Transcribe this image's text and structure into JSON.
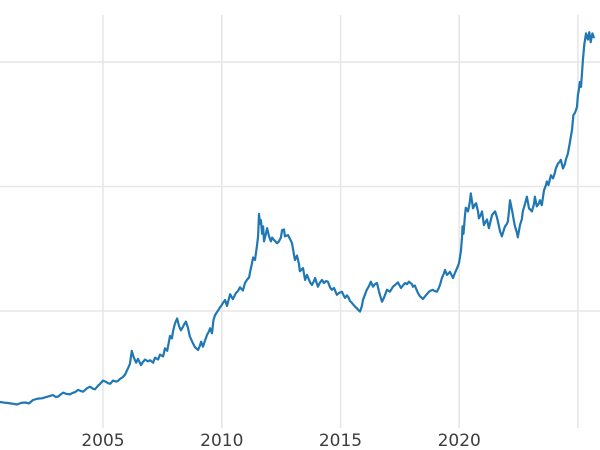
{
  "meta": {
    "description": "Cropped line chart of a long-term price series; left y-axis labels are cut off outside the visible image.",
    "background_color": "#ffffff"
  },
  "style": {
    "line_color": "#1f77b4",
    "line_width": 2.2,
    "grid_color": "#e7e7e7",
    "grid_width": 1.6,
    "tick_label_color": "#3d3d3d",
    "tick_font_size": 17
  },
  "chart_data": {
    "type": "line",
    "title": "",
    "xlabel": "",
    "ylabel": "",
    "grid": true,
    "legend": "none",
    "x_tick_labels": [
      "2005",
      "2010",
      "2015",
      "2020"
    ],
    "x_tick_years": [
      2005,
      2010,
      2015,
      2020
    ],
    "x_gridline_years": [
      2005,
      2010,
      2015,
      2020,
      2025
    ],
    "y_gridline_values": [
      1000,
      2000,
      3000
    ],
    "y_tick_labels_visible": false,
    "note": "Y-axis tick labels are cropped out of view; values estimated assuming the three unlabeled horizontal gridlines are 1000, 2000, 3000.",
    "xlim": [
      2000.66,
      2025.93
    ],
    "ylim": [
      60,
      3378
    ],
    "series": [
      {
        "name": "price",
        "color": "#1f77b4",
        "points": [
          [
            2000.66,
            269
          ],
          [
            2000.82,
            264
          ],
          [
            2000.99,
            261
          ],
          [
            2001.16,
            256
          ],
          [
            2001.38,
            249
          ],
          [
            2001.55,
            262
          ],
          [
            2001.72,
            265
          ],
          [
            2001.88,
            258
          ],
          [
            2002.05,
            285
          ],
          [
            2002.26,
            296
          ],
          [
            2002.43,
            299
          ],
          [
            2002.6,
            308
          ],
          [
            2002.77,
            318
          ],
          [
            2002.89,
            325
          ],
          [
            2003.0,
            310
          ],
          [
            2003.11,
            312
          ],
          [
            2003.22,
            330
          ],
          [
            2003.32,
            344
          ],
          [
            2003.44,
            335
          ],
          [
            2003.61,
            330
          ],
          [
            2003.7,
            340
          ],
          [
            2003.82,
            348
          ],
          [
            2003.95,
            366
          ],
          [
            2004.05,
            358
          ],
          [
            2004.16,
            352
          ],
          [
            2004.33,
            380
          ],
          [
            2004.45,
            392
          ],
          [
            2004.58,
            375
          ],
          [
            2004.66,
            371
          ],
          [
            2004.79,
            400
          ],
          [
            2004.87,
            414
          ],
          [
            2005.0,
            441
          ],
          [
            2005.13,
            430
          ],
          [
            2005.21,
            420
          ],
          [
            2005.3,
            415
          ],
          [
            2005.42,
            441
          ],
          [
            2005.55,
            433
          ],
          [
            2005.63,
            438
          ],
          [
            2005.72,
            455
          ],
          [
            2005.84,
            470
          ],
          [
            2005.93,
            490
          ],
          [
            2006.05,
            540
          ],
          [
            2006.13,
            575
          ],
          [
            2006.21,
            680
          ],
          [
            2006.27,
            640
          ],
          [
            2006.31,
            620
          ],
          [
            2006.39,
            585
          ],
          [
            2006.47,
            615
          ],
          [
            2006.6,
            565
          ],
          [
            2006.68,
            590
          ],
          [
            2006.77,
            610
          ],
          [
            2006.89,
            595
          ],
          [
            2006.98,
            605
          ],
          [
            2007.11,
            585
          ],
          [
            2007.19,
            625
          ],
          [
            2007.32,
            610
          ],
          [
            2007.4,
            650
          ],
          [
            2007.53,
            635
          ],
          [
            2007.61,
            700
          ],
          [
            2007.7,
            680
          ],
          [
            2007.82,
            800
          ],
          [
            2007.9,
            780
          ],
          [
            2007.95,
            840
          ],
          [
            2008.03,
            900
          ],
          [
            2008.12,
            940
          ],
          [
            2008.2,
            880
          ],
          [
            2008.28,
            845
          ],
          [
            2008.36,
            870
          ],
          [
            2008.41,
            890
          ],
          [
            2008.49,
            915
          ],
          [
            2008.57,
            870
          ],
          [
            2008.66,
            794
          ],
          [
            2008.79,
            740
          ],
          [
            2008.87,
            710
          ],
          [
            2009.0,
            687
          ],
          [
            2009.08,
            720
          ],
          [
            2009.13,
            753
          ],
          [
            2009.21,
            713
          ],
          [
            2009.29,
            760
          ],
          [
            2009.38,
            807
          ],
          [
            2009.46,
            835
          ],
          [
            2009.51,
            861
          ],
          [
            2009.59,
            821
          ],
          [
            2009.65,
            928
          ],
          [
            2009.72,
            968
          ],
          [
            2009.86,
            1008
          ],
          [
            2009.93,
            1030
          ],
          [
            2010.0,
            1048
          ],
          [
            2010.07,
            1070
          ],
          [
            2010.14,
            1088
          ],
          [
            2010.22,
            1040
          ],
          [
            2010.35,
            1135
          ],
          [
            2010.47,
            1095
          ],
          [
            2010.6,
            1145
          ],
          [
            2010.68,
            1160
          ],
          [
            2010.77,
            1190
          ],
          [
            2010.89,
            1165
          ],
          [
            2010.98,
            1225
          ],
          [
            2011.06,
            1250
          ],
          [
            2011.15,
            1270
          ],
          [
            2011.19,
            1310
          ],
          [
            2011.27,
            1380
          ],
          [
            2011.32,
            1430
          ],
          [
            2011.4,
            1410
          ],
          [
            2011.48,
            1520
          ],
          [
            2011.53,
            1600
          ],
          [
            2011.57,
            1780
          ],
          [
            2011.61,
            1700
          ],
          [
            2011.65,
            1730
          ],
          [
            2011.7,
            1620
          ],
          [
            2011.74,
            1680
          ],
          [
            2011.78,
            1560
          ],
          [
            2011.86,
            1620
          ],
          [
            2011.91,
            1665
          ],
          [
            2011.99,
            1600
          ],
          [
            2012.07,
            1560
          ],
          [
            2012.12,
            1590
          ],
          [
            2012.2,
            1570
          ],
          [
            2012.33,
            1545
          ],
          [
            2012.41,
            1560
          ],
          [
            2012.49,
            1590
          ],
          [
            2012.54,
            1650
          ],
          [
            2012.62,
            1655
          ],
          [
            2012.66,
            1600
          ],
          [
            2012.79,
            1610
          ],
          [
            2012.87,
            1580
          ],
          [
            2012.96,
            1545
          ],
          [
            2013.08,
            1410
          ],
          [
            2013.17,
            1445
          ],
          [
            2013.25,
            1380
          ],
          [
            2013.29,
            1320
          ],
          [
            2013.42,
            1345
          ],
          [
            2013.51,
            1250
          ],
          [
            2013.59,
            1290
          ],
          [
            2013.72,
            1230
          ],
          [
            2013.8,
            1210
          ],
          [
            2013.88,
            1240
          ],
          [
            2013.93,
            1265
          ],
          [
            2014.05,
            1195
          ],
          [
            2014.14,
            1230
          ],
          [
            2014.22,
            1250
          ],
          [
            2014.3,
            1225
          ],
          [
            2014.39,
            1240
          ],
          [
            2014.47,
            1235
          ],
          [
            2014.56,
            1190
          ],
          [
            2014.64,
            1170
          ],
          [
            2014.73,
            1185
          ],
          [
            2014.81,
            1145
          ],
          [
            2014.85,
            1130
          ],
          [
            2014.94,
            1145
          ],
          [
            2015.06,
            1155
          ],
          [
            2015.15,
            1120
          ],
          [
            2015.19,
            1105
          ],
          [
            2015.27,
            1125
          ],
          [
            2015.32,
            1115
          ],
          [
            2015.4,
            1080
          ],
          [
            2015.48,
            1065
          ],
          [
            2015.57,
            1045
          ],
          [
            2015.61,
            1035
          ],
          [
            2015.7,
            1020
          ],
          [
            2015.74,
            1010
          ],
          [
            2015.82,
            995
          ],
          [
            2015.9,
            1040
          ],
          [
            2015.95,
            1090
          ],
          [
            2016.03,
            1130
          ],
          [
            2016.11,
            1170
          ],
          [
            2016.2,
            1200
          ],
          [
            2016.28,
            1235
          ],
          [
            2016.37,
            1195
          ],
          [
            2016.45,
            1215
          ],
          [
            2016.54,
            1225
          ],
          [
            2016.62,
            1160
          ],
          [
            2016.66,
            1130
          ],
          [
            2016.75,
            1075
          ],
          [
            2016.83,
            1105
          ],
          [
            2016.96,
            1170
          ],
          [
            2017.08,
            1155
          ],
          [
            2017.21,
            1195
          ],
          [
            2017.3,
            1210
          ],
          [
            2017.42,
            1230
          ],
          [
            2017.55,
            1185
          ],
          [
            2017.63,
            1205
          ],
          [
            2017.72,
            1225
          ],
          [
            2017.8,
            1215
          ],
          [
            2017.88,
            1235
          ],
          [
            2018.01,
            1215
          ],
          [
            2018.05,
            1195
          ],
          [
            2018.13,
            1205
          ],
          [
            2018.26,
            1145
          ],
          [
            2018.34,
            1120
          ],
          [
            2018.47,
            1096
          ],
          [
            2018.55,
            1115
          ],
          [
            2018.68,
            1145
          ],
          [
            2018.76,
            1160
          ],
          [
            2018.89,
            1170
          ],
          [
            2018.97,
            1160
          ],
          [
            2019.06,
            1155
          ],
          [
            2019.14,
            1185
          ],
          [
            2019.19,
            1210
          ],
          [
            2019.27,
            1265
          ],
          [
            2019.35,
            1300
          ],
          [
            2019.4,
            1330
          ],
          [
            2019.48,
            1290
          ],
          [
            2019.57,
            1305
          ],
          [
            2019.61,
            1315
          ],
          [
            2019.69,
            1285
          ],
          [
            2019.74,
            1265
          ],
          [
            2019.82,
            1305
          ],
          [
            2019.91,
            1345
          ],
          [
            2019.99,
            1385
          ],
          [
            2020.07,
            1480
          ],
          [
            2020.12,
            1590
          ],
          [
            2020.14,
            1680
          ],
          [
            2020.18,
            1620
          ],
          [
            2020.24,
            1760
          ],
          [
            2020.28,
            1830
          ],
          [
            2020.37,
            1800
          ],
          [
            2020.45,
            1880
          ],
          [
            2020.49,
            1945
          ],
          [
            2020.58,
            1825
          ],
          [
            2020.66,
            1855
          ],
          [
            2020.71,
            1865
          ],
          [
            2020.79,
            1800
          ],
          [
            2020.83,
            1745
          ],
          [
            2020.92,
            1775
          ],
          [
            2020.96,
            1800
          ],
          [
            2021.04,
            1690
          ],
          [
            2021.12,
            1720
          ],
          [
            2021.17,
            1735
          ],
          [
            2021.25,
            1665
          ],
          [
            2021.33,
            1730
          ],
          [
            2021.38,
            1770
          ],
          [
            2021.46,
            1790
          ],
          [
            2021.51,
            1800
          ],
          [
            2021.59,
            1750
          ],
          [
            2021.63,
            1720
          ],
          [
            2021.72,
            1640
          ],
          [
            2021.8,
            1600
          ],
          [
            2021.88,
            1650
          ],
          [
            2021.93,
            1680
          ],
          [
            2022.01,
            1700
          ],
          [
            2022.05,
            1720
          ],
          [
            2022.1,
            1810
          ],
          [
            2022.14,
            1890
          ],
          [
            2022.18,
            1850
          ],
          [
            2022.22,
            1815
          ],
          [
            2022.31,
            1720
          ],
          [
            2022.35,
            1680
          ],
          [
            2022.43,
            1630
          ],
          [
            2022.47,
            1592
          ],
          [
            2022.56,
            1690
          ],
          [
            2022.64,
            1740
          ],
          [
            2022.68,
            1800
          ],
          [
            2022.77,
            1860
          ],
          [
            2022.85,
            1918
          ],
          [
            2022.94,
            1825
          ],
          [
            2023.02,
            1810
          ],
          [
            2023.06,
            1800
          ],
          [
            2023.15,
            1860
          ],
          [
            2023.19,
            1918
          ],
          [
            2023.27,
            1840
          ],
          [
            2023.36,
            1865
          ],
          [
            2023.4,
            1890
          ],
          [
            2023.48,
            1850
          ],
          [
            2023.57,
            1970
          ],
          [
            2023.65,
            2010
          ],
          [
            2023.69,
            2040
          ],
          [
            2023.76,
            2012
          ],
          [
            2023.86,
            2090
          ],
          [
            2023.95,
            2065
          ],
          [
            2024.03,
            2110
          ],
          [
            2024.07,
            2145
          ],
          [
            2024.16,
            2185
          ],
          [
            2024.24,
            2200
          ],
          [
            2024.28,
            2215
          ],
          [
            2024.37,
            2145
          ],
          [
            2024.45,
            2180
          ],
          [
            2024.49,
            2215
          ],
          [
            2024.58,
            2265
          ],
          [
            2024.66,
            2350
          ],
          [
            2024.75,
            2455
          ],
          [
            2024.81,
            2575
          ],
          [
            2024.87,
            2590
          ],
          [
            2024.92,
            2615
          ],
          [
            2024.96,
            2640
          ],
          [
            2025.0,
            2735
          ],
          [
            2025.04,
            2780
          ],
          [
            2025.08,
            2840
          ],
          [
            2025.13,
            2800
          ],
          [
            2025.17,
            2910
          ],
          [
            2025.21,
            3015
          ],
          [
            2025.27,
            3140
          ],
          [
            2025.34,
            3230
          ],
          [
            2025.42,
            3180
          ],
          [
            2025.48,
            3240
          ],
          [
            2025.54,
            3160
          ],
          [
            2025.61,
            3230
          ],
          [
            2025.67,
            3200
          ]
        ]
      }
    ]
  }
}
